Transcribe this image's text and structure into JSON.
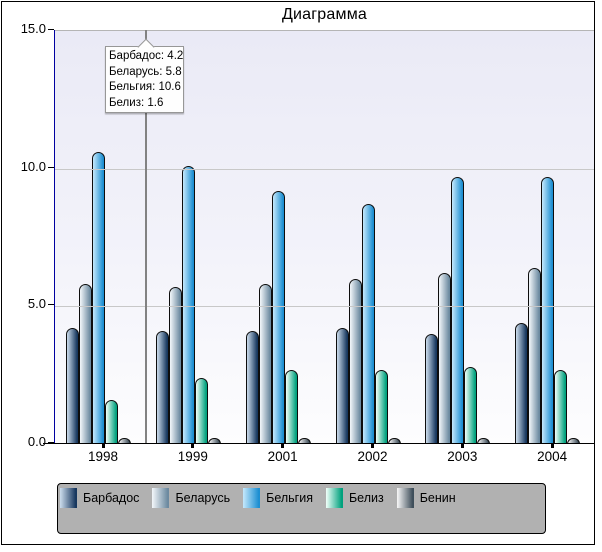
{
  "window": {
    "title": "Диаграмма"
  },
  "chart_data": {
    "type": "bar",
    "title": "Диаграмма",
    "categories": [
      "1998",
      "1999",
      "2001",
      "2002",
      "2003",
      "2004"
    ],
    "series": [
      {
        "name": "Барбадос",
        "values": [
          4.2,
          4.1,
          4.1,
          4.2,
          4.0,
          4.4
        ],
        "color_light": "#c6d7e8",
        "color_dark": "#17375e"
      },
      {
        "name": "Беларусь",
        "values": [
          5.8,
          5.7,
          5.8,
          6.0,
          6.2,
          6.4
        ],
        "color_light": "#eef3f7",
        "color_dark": "#6c8aa0"
      },
      {
        "name": "Бельгия",
        "values": [
          10.6,
          10.1,
          9.2,
          8.7,
          9.7,
          9.7
        ],
        "color_light": "#bfe5fa",
        "color_dark": "#1d8fd2"
      },
      {
        "name": "Белиз",
        "values": [
          1.6,
          2.4,
          2.7,
          2.7,
          2.8,
          2.7
        ],
        "color_light": "#e8fcf5",
        "color_dark": "#00a17d"
      },
      {
        "name": "Бенин",
        "values": [
          0.2,
          0.2,
          0.2,
          0.2,
          0.2,
          0.2
        ],
        "color_light": "#f2f2f2",
        "color_dark": "#3e4e5a"
      }
    ],
    "ylim": [
      0,
      15
    ],
    "y_tick_labels": [
      "0.0",
      "5.0",
      "10.0",
      "15.0"
    ],
    "y_tick_values": [
      0,
      5,
      10,
      15
    ],
    "grid": true,
    "legend_position": "bottom",
    "legend_items": [
      "Барбадос",
      "Беларусь",
      "Бельгия",
      "Белиз",
      "Бенин"
    ]
  },
  "tooltip": {
    "anchor_category": "1998",
    "lines": [
      "Барбадос: 4.2",
      "Беларусь: 5.8",
      "Бельгия: 10.6",
      "Белиз: 1.6"
    ]
  },
  "colors": {
    "plot_bg_top": "#eaeaf6",
    "plot_bg_bottom": "#fdfdfe",
    "gridline": "#c8c8c8",
    "y_axis": "#0000a0",
    "x_axis": "#000000",
    "legend_bg": "#b1b1b1",
    "marker_line": "#828282",
    "tooltip_border": "#979797"
  }
}
